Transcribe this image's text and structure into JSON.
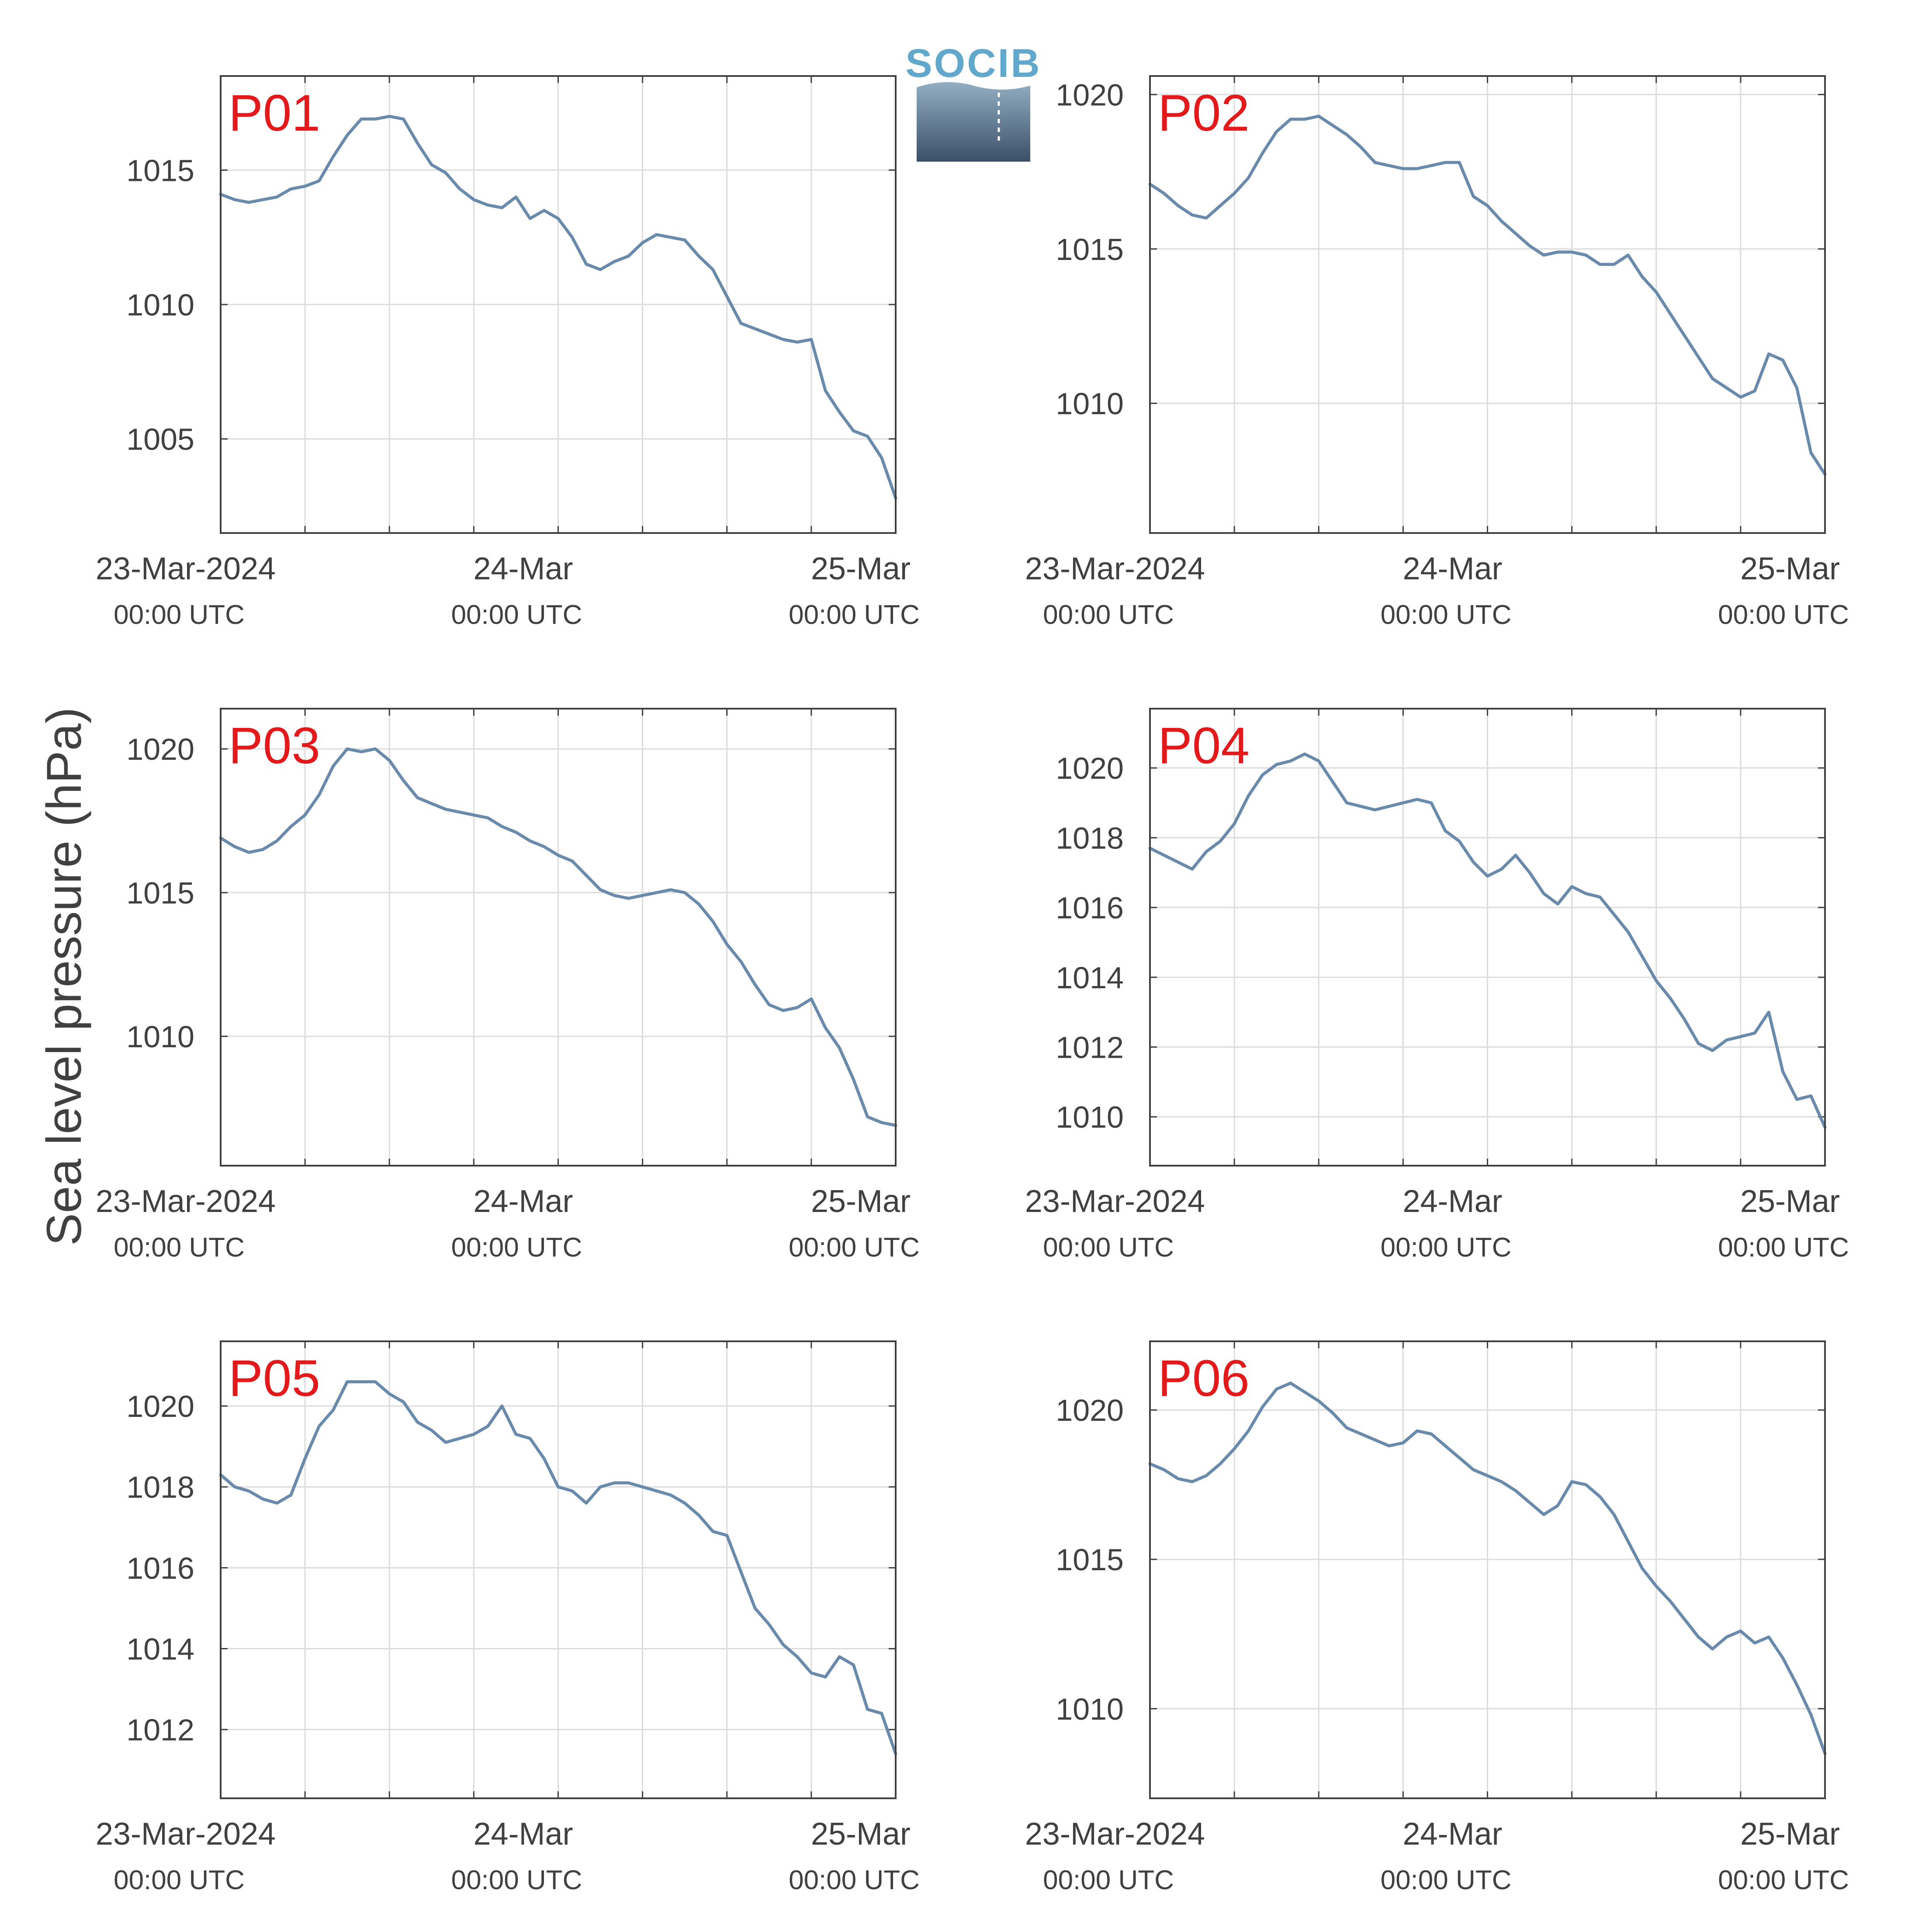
{
  "figure": {
    "ylabel": "Sea level pressure (hPa)",
    "logo_text": "SOCIB",
    "colors": {
      "line": "#6a8aab",
      "panel_label": "#e31a1c",
      "grid": "#dcdcdc",
      "axis": "#404040",
      "logo_text": "#62a8cc",
      "logo_top": "#93aec3",
      "logo_bottom": "#3b5068"
    }
  },
  "chart_data": [
    {
      "type": "line",
      "name": "P01",
      "panel_label": "P01",
      "xlabel": "",
      "ylabel": "Sea level pressure (hPa)",
      "x_unit": "hours since 23-Mar-2024 00:00 UTC",
      "xlim": [
        0,
        48
      ],
      "ylim": [
        1001.5,
        1018.5
      ],
      "yticks": [
        1005,
        1010,
        1015
      ],
      "xticks": [
        0,
        6,
        12,
        18,
        24,
        30,
        36,
        42,
        48
      ],
      "xtick_labels": [
        {
          "hour": 0,
          "date": "23-Mar-2024",
          "time": "00:00 UTC"
        },
        {
          "hour": 24,
          "date": "24-Mar",
          "time": "00:00 UTC"
        },
        {
          "hour": 48,
          "date": "25-Mar",
          "time": "00:00 UTC"
        }
      ],
      "grid": true,
      "x": [
        0,
        1,
        2,
        3,
        4,
        5,
        6,
        7,
        8,
        9,
        10,
        11,
        12,
        13,
        14,
        15,
        16,
        17,
        18,
        19,
        20,
        21,
        22,
        23,
        24,
        25,
        26,
        27,
        28,
        29,
        30,
        31,
        32,
        33,
        34,
        35,
        36,
        37,
        38,
        39,
        40,
        41,
        42,
        43,
        44,
        45,
        46,
        47,
        48
      ],
      "y": [
        1014.1,
        1013.9,
        1013.8,
        1013.9,
        1014.0,
        1014.3,
        1014.4,
        1014.6,
        1015.5,
        1016.3,
        1016.9,
        1016.9,
        1017.0,
        1016.9,
        1016.0,
        1015.2,
        1014.9,
        1014.3,
        1013.9,
        1013.7,
        1013.6,
        1014.0,
        1013.2,
        1013.5,
        1013.2,
        1012.5,
        1011.5,
        1011.3,
        1011.6,
        1011.8,
        1012.3,
        1012.6,
        1012.5,
        1012.4,
        1011.8,
        1011.3,
        1010.3,
        1009.3,
        1009.1,
        1008.9,
        1008.7,
        1008.6,
        1008.7,
        1006.8,
        1006.0,
        1005.3,
        1005.1,
        1004.3,
        1002.8
      ]
    },
    {
      "type": "line",
      "name": "P02",
      "panel_label": "P02",
      "xlabel": "",
      "ylabel": "Sea level pressure (hPa)",
      "x_unit": "hours since 23-Mar-2024 00:00 UTC",
      "xlim": [
        0,
        48
      ],
      "ylim": [
        1005.8,
        1020.6
      ],
      "yticks": [
        1010,
        1015,
        1020
      ],
      "xticks": [
        0,
        6,
        12,
        18,
        24,
        30,
        36,
        42,
        48
      ],
      "xtick_labels": [
        {
          "hour": 0,
          "date": "23-Mar-2024",
          "time": "00:00 UTC"
        },
        {
          "hour": 24,
          "date": "24-Mar",
          "time": "00:00 UTC"
        },
        {
          "hour": 48,
          "date": "25-Mar",
          "time": "00:00 UTC"
        }
      ],
      "grid": true,
      "x": [
        0,
        1,
        2,
        3,
        4,
        5,
        6,
        7,
        8,
        9,
        10,
        11,
        12,
        13,
        14,
        15,
        16,
        17,
        18,
        19,
        20,
        21,
        22,
        23,
        24,
        25,
        26,
        27,
        28,
        29,
        30,
        31,
        32,
        33,
        34,
        35,
        36,
        37,
        38,
        39,
        40,
        41,
        42,
        43,
        44,
        45,
        46,
        47,
        48
      ],
      "y": [
        1017.1,
        1016.8,
        1016.4,
        1016.1,
        1016.0,
        1016.4,
        1016.8,
        1017.3,
        1018.1,
        1018.8,
        1019.2,
        1019.2,
        1019.3,
        1019.0,
        1018.7,
        1018.3,
        1017.8,
        1017.7,
        1017.6,
        1017.6,
        1017.7,
        1017.8,
        1017.8,
        1016.7,
        1016.4,
        1015.9,
        1015.5,
        1015.1,
        1014.8,
        1014.9,
        1014.9,
        1014.8,
        1014.5,
        1014.5,
        1014.8,
        1014.1,
        1013.6,
        1012.9,
        1012.2,
        1011.5,
        1010.8,
        1010.5,
        1010.2,
        1010.4,
        1011.6,
        1011.4,
        1010.5,
        1008.4,
        1007.7
      ]
    },
    {
      "type": "line",
      "name": "P03",
      "panel_label": "P03",
      "xlabel": "",
      "ylabel": "Sea level pressure (hPa)",
      "x_unit": "hours since 23-Mar-2024 00:00 UTC",
      "xlim": [
        0,
        48
      ],
      "ylim": [
        1005.5,
        1021.4
      ],
      "yticks": [
        1010,
        1015,
        1020
      ],
      "xticks": [
        0,
        6,
        12,
        18,
        24,
        30,
        36,
        42,
        48
      ],
      "xtick_labels": [
        {
          "hour": 0,
          "date": "23-Mar-2024",
          "time": "00:00 UTC"
        },
        {
          "hour": 24,
          "date": "24-Mar",
          "time": "00:00 UTC"
        },
        {
          "hour": 48,
          "date": "25-Mar",
          "time": "00:00 UTC"
        }
      ],
      "grid": true,
      "x": [
        0,
        1,
        2,
        3,
        4,
        5,
        6,
        7,
        8,
        9,
        10,
        11,
        12,
        13,
        14,
        15,
        16,
        17,
        18,
        19,
        20,
        21,
        22,
        23,
        24,
        25,
        26,
        27,
        28,
        29,
        30,
        31,
        32,
        33,
        34,
        35,
        36,
        37,
        38,
        39,
        40,
        41,
        42,
        43,
        44,
        45,
        46,
        47,
        48
      ],
      "y": [
        1016.9,
        1016.6,
        1016.4,
        1016.5,
        1016.8,
        1017.3,
        1017.7,
        1018.4,
        1019.4,
        1020.0,
        1019.9,
        1020.0,
        1019.6,
        1018.9,
        1018.3,
        1018.1,
        1017.9,
        1017.8,
        1017.7,
        1017.6,
        1017.3,
        1017.1,
        1016.8,
        1016.6,
        1016.3,
        1016.1,
        1015.6,
        1015.1,
        1014.9,
        1014.8,
        1014.9,
        1015.0,
        1015.1,
        1015.0,
        1014.6,
        1014.0,
        1013.2,
        1012.6,
        1011.8,
        1011.1,
        1010.9,
        1011.0,
        1011.3,
        1010.3,
        1009.6,
        1008.5,
        1007.2,
        1007.0,
        1006.9
      ]
    },
    {
      "type": "line",
      "name": "P04",
      "panel_label": "P04",
      "xlabel": "",
      "ylabel": "Sea level pressure (hPa)",
      "x_unit": "hours since 23-Mar-2024 00:00 UTC",
      "xlim": [
        0,
        48
      ],
      "ylim": [
        1008.6,
        1021.7
      ],
      "yticks": [
        1010,
        1012,
        1014,
        1016,
        1018,
        1020
      ],
      "xticks": [
        0,
        6,
        12,
        18,
        24,
        30,
        36,
        42,
        48
      ],
      "xtick_labels": [
        {
          "hour": 0,
          "date": "23-Mar-2024",
          "time": "00:00 UTC"
        },
        {
          "hour": 24,
          "date": "24-Mar",
          "time": "00:00 UTC"
        },
        {
          "hour": 48,
          "date": "25-Mar",
          "time": "00:00 UTC"
        }
      ],
      "grid": true,
      "x": [
        0,
        1,
        2,
        3,
        4,
        5,
        6,
        7,
        8,
        9,
        10,
        11,
        12,
        13,
        14,
        15,
        16,
        17,
        18,
        19,
        20,
        21,
        22,
        23,
        24,
        25,
        26,
        27,
        28,
        29,
        30,
        31,
        32,
        33,
        34,
        35,
        36,
        37,
        38,
        39,
        40,
        41,
        42,
        43,
        44,
        45,
        46,
        47,
        48
      ],
      "y": [
        1017.7,
        1017.5,
        1017.3,
        1017.1,
        1017.6,
        1017.9,
        1018.4,
        1019.2,
        1019.8,
        1020.1,
        1020.2,
        1020.4,
        1020.2,
        1019.6,
        1019.0,
        1018.9,
        1018.8,
        1018.9,
        1019.0,
        1019.1,
        1019.0,
        1018.2,
        1017.9,
        1017.3,
        1016.9,
        1017.1,
        1017.5,
        1017.0,
        1016.4,
        1016.1,
        1016.6,
        1016.4,
        1016.3,
        1015.8,
        1015.3,
        1014.6,
        1013.9,
        1013.4,
        1012.8,
        1012.1,
        1011.9,
        1012.2,
        1012.3,
        1012.4,
        1013.0,
        1011.3,
        1010.5,
        1010.6,
        1009.7
      ]
    },
    {
      "type": "line",
      "name": "P05",
      "panel_label": "P05",
      "xlabel": "",
      "ylabel": "Sea level pressure (hPa)",
      "x_unit": "hours since 23-Mar-2024 00:00 UTC",
      "xlim": [
        0,
        48
      ],
      "ylim": [
        1010.3,
        1021.6
      ],
      "yticks": [
        1012,
        1014,
        1016,
        1018,
        1020
      ],
      "xticks": [
        0,
        6,
        12,
        18,
        24,
        30,
        36,
        42,
        48
      ],
      "xtick_labels": [
        {
          "hour": 0,
          "date": "23-Mar-2024",
          "time": "00:00 UTC"
        },
        {
          "hour": 24,
          "date": "24-Mar",
          "time": "00:00 UTC"
        },
        {
          "hour": 48,
          "date": "25-Mar",
          "time": "00:00 UTC"
        }
      ],
      "grid": true,
      "x": [
        0,
        1,
        2,
        3,
        4,
        5,
        6,
        7,
        8,
        9,
        10,
        11,
        12,
        13,
        14,
        15,
        16,
        17,
        18,
        19,
        20,
        21,
        22,
        23,
        24,
        25,
        26,
        27,
        28,
        29,
        30,
        31,
        32,
        33,
        34,
        35,
        36,
        37,
        38,
        39,
        40,
        41,
        42,
        43,
        44,
        45,
        46,
        47,
        48
      ],
      "y": [
        1018.3,
        1018.0,
        1017.9,
        1017.7,
        1017.6,
        1017.8,
        1018.7,
        1019.5,
        1019.9,
        1020.6,
        1020.6,
        1020.6,
        1020.3,
        1020.1,
        1019.6,
        1019.4,
        1019.1,
        1019.2,
        1019.3,
        1019.5,
        1020.0,
        1019.3,
        1019.2,
        1018.7,
        1018.0,
        1017.9,
        1017.6,
        1018.0,
        1018.1,
        1018.1,
        1018.0,
        1017.9,
        1017.8,
        1017.6,
        1017.3,
        1016.9,
        1016.8,
        1015.9,
        1015.0,
        1014.6,
        1014.1,
        1013.8,
        1013.4,
        1013.3,
        1013.8,
        1013.6,
        1012.5,
        1012.4,
        1011.4
      ]
    },
    {
      "type": "line",
      "name": "P06",
      "panel_label": "P06",
      "xlabel": "",
      "ylabel": "Sea level pressure (hPa)",
      "x_unit": "hours since 23-Mar-2024 00:00 UTC",
      "xlim": [
        0,
        48
      ],
      "ylim": [
        1007.0,
        1022.3
      ],
      "yticks": [
        1010,
        1015,
        1020
      ],
      "xticks": [
        0,
        6,
        12,
        18,
        24,
        30,
        36,
        42,
        48
      ],
      "xtick_labels": [
        {
          "hour": 0,
          "date": "23-Mar-2024",
          "time": "00:00 UTC"
        },
        {
          "hour": 24,
          "date": "24-Mar",
          "time": "00:00 UTC"
        },
        {
          "hour": 48,
          "date": "25-Mar",
          "time": "00:00 UTC"
        }
      ],
      "grid": true,
      "x": [
        0,
        1,
        2,
        3,
        4,
        5,
        6,
        7,
        8,
        9,
        10,
        11,
        12,
        13,
        14,
        15,
        16,
        17,
        18,
        19,
        20,
        21,
        22,
        23,
        24,
        25,
        26,
        27,
        28,
        29,
        30,
        31,
        32,
        33,
        34,
        35,
        36,
        37,
        38,
        39,
        40,
        41,
        42,
        43,
        44,
        45,
        46,
        47,
        48
      ],
      "y": [
        1018.2,
        1018.0,
        1017.7,
        1017.6,
        1017.8,
        1018.2,
        1018.7,
        1019.3,
        1020.1,
        1020.7,
        1020.9,
        1020.6,
        1020.3,
        1019.9,
        1019.4,
        1019.2,
        1019.0,
        1018.8,
        1018.9,
        1019.3,
        1019.2,
        1018.8,
        1018.4,
        1018.0,
        1017.8,
        1017.6,
        1017.3,
        1016.9,
        1016.5,
        1016.8,
        1017.6,
        1017.5,
        1017.1,
        1016.5,
        1015.6,
        1014.7,
        1014.1,
        1013.6,
        1013.0,
        1012.4,
        1012.0,
        1012.4,
        1012.6,
        1012.2,
        1012.4,
        1011.7,
        1010.8,
        1009.8,
        1008.5
      ]
    }
  ]
}
